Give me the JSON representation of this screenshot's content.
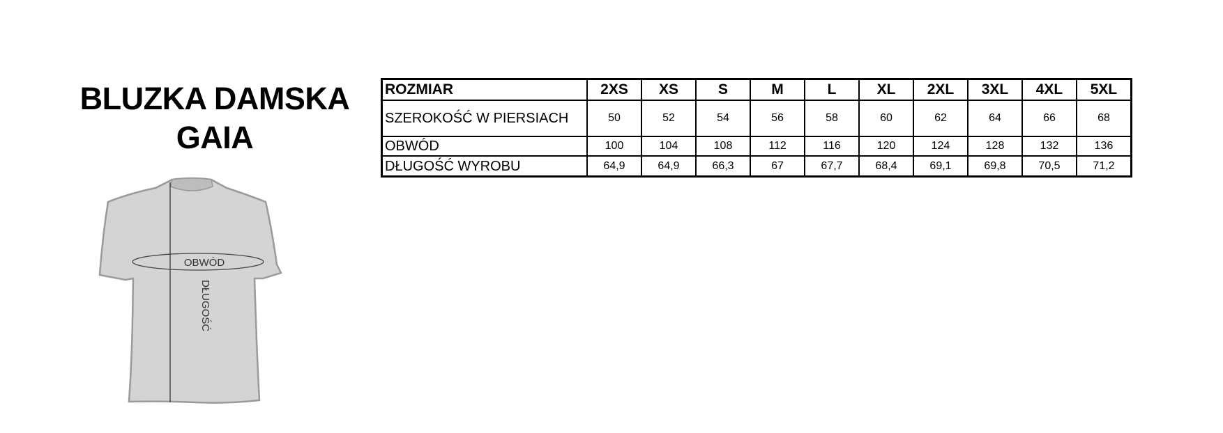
{
  "title": {
    "line1": "BLUZKA DAMSKA",
    "line2": "GAIA"
  },
  "diagram": {
    "girth_label": "OBWÓD",
    "length_label": "DŁUGOŚĆ",
    "shirt_color": "#d4d4d4",
    "outline_color": "#9a9a9a"
  },
  "table": {
    "header": {
      "label": "ROZMIAR",
      "sizes": [
        "2XS",
        "XS",
        "S",
        "M",
        "L",
        "XL",
        "2XL",
        "3XL",
        "4XL",
        "5XL"
      ]
    },
    "rows": [
      {
        "label": "SZEROKOŚĆ W PIERSIACH",
        "values": [
          "50",
          "52",
          "54",
          "56",
          "58",
          "60",
          "62",
          "64",
          "66",
          "68"
        ]
      },
      {
        "label": "OBWÓD",
        "values": [
          "100",
          "104",
          "108",
          "112",
          "116",
          "120",
          "124",
          "128",
          "132",
          "136"
        ]
      },
      {
        "label": "DŁUGOŚĆ WYROBU",
        "values": [
          "64,9",
          "64,9",
          "66,3",
          "67",
          "67,7",
          "68,4",
          "69,1",
          "69,8",
          "70,5",
          "71,2"
        ]
      }
    ]
  }
}
